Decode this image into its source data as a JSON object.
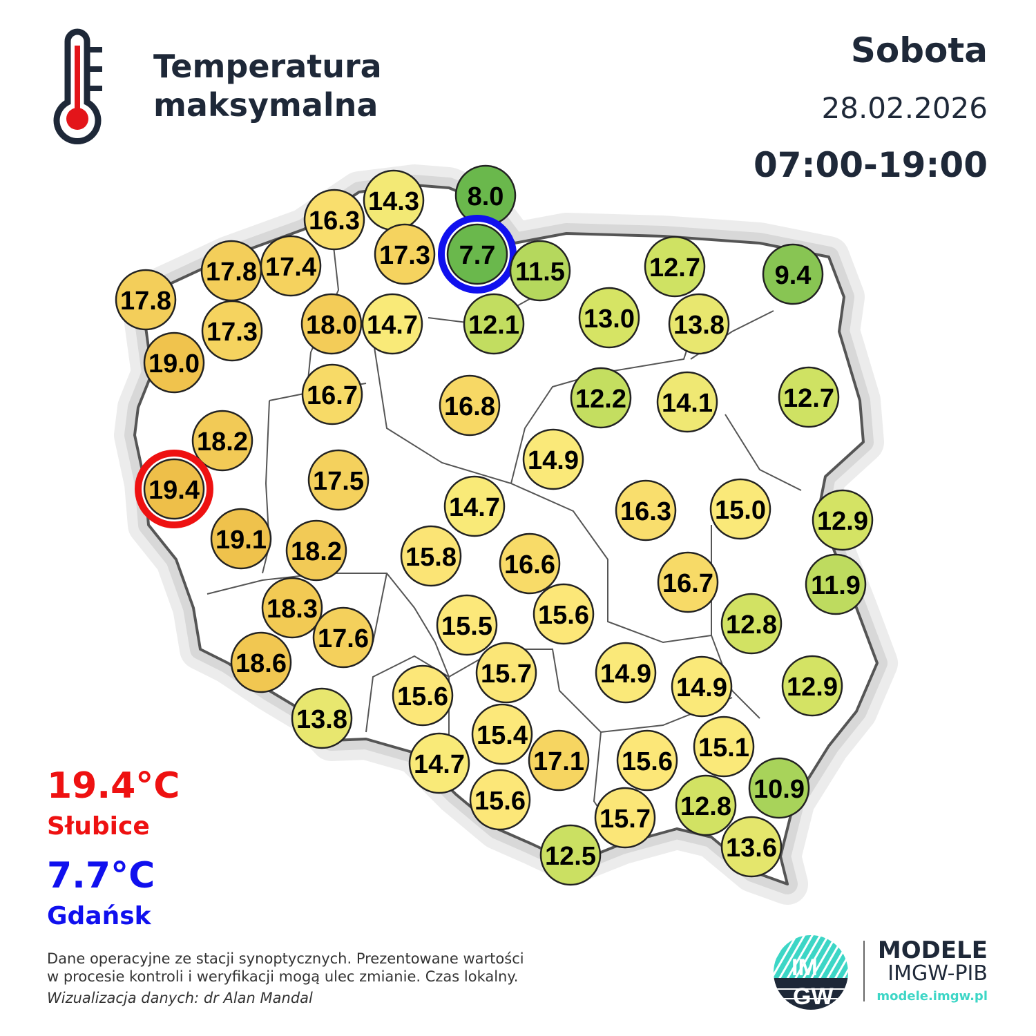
{
  "header": {
    "title_line1": "Temperatura",
    "title_line2": "maksymalna",
    "day": "Sobota",
    "date": "28.02.2026",
    "hours": "07:00-19:00",
    "icon": "thermometer-icon"
  },
  "stations": [
    14.3,
    8.0,
    16.3,
    17.3,
    7.7,
    11.5,
    17.8,
    17.4,
    17.8,
    17.3,
    18.0,
    14.7,
    12.1,
    13.0,
    12.7,
    9.4,
    13.8,
    19.0,
    16.7,
    16.8,
    12.2,
    14.1,
    12.7,
    18.2,
    19.4,
    17.5,
    14.9,
    14.7,
    16.3,
    15.0,
    12.9,
    19.1,
    18.2,
    15.8,
    16.6,
    16.7,
    11.9,
    18.3,
    17.6,
    15.5,
    15.6,
    12.8,
    18.6,
    15.7,
    14.9,
    14.9,
    12.9,
    13.8,
    15.6,
    15.4,
    17.1,
    15.6,
    15.1,
    14.7,
    15.6,
    10.9,
    12.8,
    15.7,
    12.5,
    13.6
  ],
  "extremes": {
    "max": {
      "value": "19.4°C",
      "station": "Słubice",
      "color": "#ee1111"
    },
    "min": {
      "value": "7.7°C",
      "station": "Gdańsk",
      "color": "#1010ee"
    }
  },
  "footer": {
    "note_line1": "Dane operacyjne ze stacji synoptycznych. Prezentowane wartości",
    "note_line2": "w procesie kontroli i weryfikacji mogą ulec zmianie. Czas lokalny.",
    "credit": "Wizualizacja danych: dr Alan Mandal"
  },
  "logo": {
    "mark": "IMGW",
    "brand1": "MODELE",
    "brand2": "IMGW-PIB",
    "url": "modele.imgw.pl",
    "accent": "#3dd6c6"
  }
}
